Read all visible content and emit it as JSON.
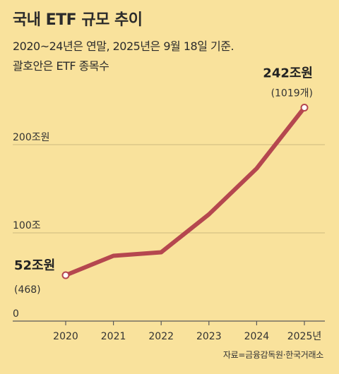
{
  "title": "국내 ETF 규모 추이",
  "subtitle_line1": "2020~24년은 연말, 2025년은 9월 18일 기준.",
  "subtitle_line2": "괄호안은 ETF 종목수",
  "source": "자료=금융감독원·한국거래소",
  "colors": {
    "line": "#b5474f",
    "background": "#f9e29c",
    "grid": "#d4c48a"
  },
  "chart_data": {
    "type": "line",
    "categories": [
      "2020",
      "2021",
      "2022",
      "2023",
      "2024",
      "2025년"
    ],
    "series": [
      {
        "values": [
          52,
          74,
          78,
          121,
          173,
          242
        ]
      }
    ],
    "ylim": [
      0,
      262
    ],
    "y_ticks": [
      {
        "value": 0,
        "label": "0"
      },
      {
        "value": 100,
        "label": "100조"
      },
      {
        "value": 200,
        "label": "200조원"
      }
    ],
    "annotations": [
      {
        "point": 0,
        "value_label": "52조원",
        "count_label": "(468)"
      },
      {
        "point": 5,
        "value_label": "242조원",
        "count_label": "(1019개)"
      }
    ],
    "grid": true
  }
}
